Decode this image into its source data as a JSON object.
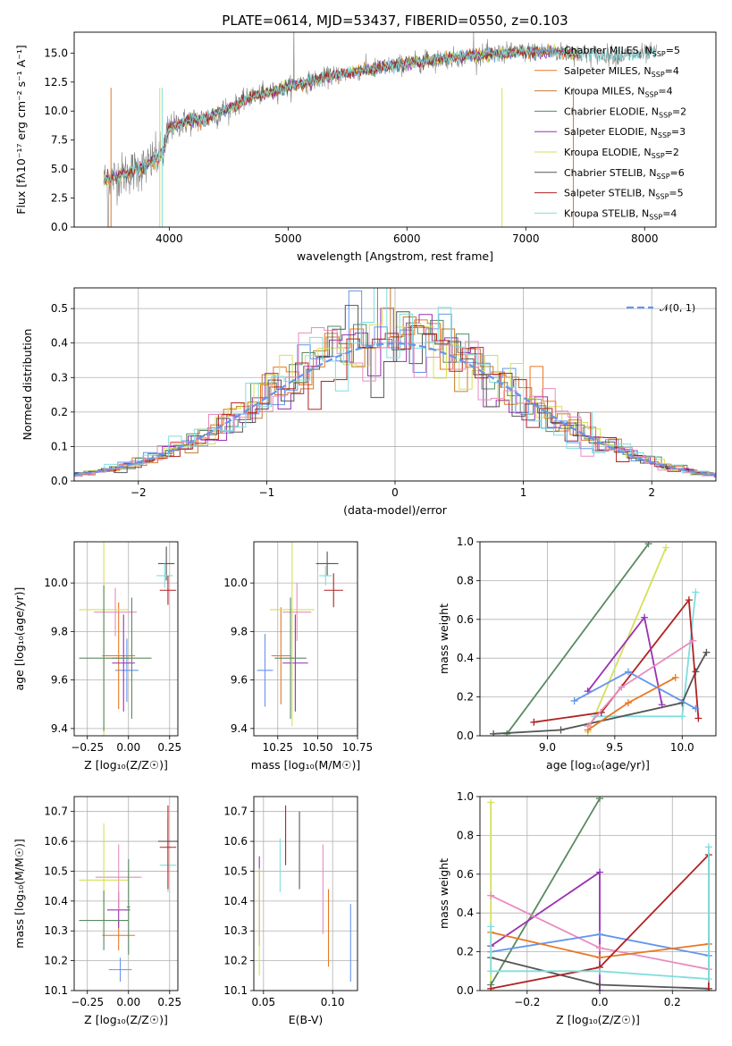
{
  "chart_data": [
    {
      "id": "spectrum",
      "type": "line",
      "title": "PLATE=0614, MJD=53437, FIBERID=0550, z=0.103",
      "xlabel": "wavelength [Angstrom, rest frame]",
      "ylabel": "Flux [fλ10⁻¹⁷ erg cm⁻² s⁻¹ A⁻¹]",
      "xlim": [
        3200,
        8600
      ],
      "ylim": [
        0,
        16.8
      ],
      "xticks": [
        4000,
        5000,
        6000,
        7000,
        8000
      ],
      "yticks": [
        0.0,
        2.5,
        5.0,
        7.5,
        10.0,
        12.5,
        15.0
      ],
      "grid": false,
      "legend_position": "right",
      "continuum": [
        [
          3450,
          4.0
        ],
        [
          3600,
          4.5
        ],
        [
          3800,
          5.2
        ],
        [
          3950,
          6.4
        ],
        [
          4000,
          8.5
        ],
        [
          4100,
          9.0
        ],
        [
          4200,
          9.2
        ],
        [
          4300,
          9.3
        ],
        [
          4500,
          10.2
        ],
        [
          4700,
          11.3
        ],
        [
          4860,
          11.6
        ],
        [
          5000,
          12.1
        ],
        [
          5200,
          12.6
        ],
        [
          5400,
          13.1
        ],
        [
          5600,
          13.5
        ],
        [
          5800,
          13.8
        ],
        [
          6000,
          14.1
        ],
        [
          6200,
          14.4
        ],
        [
          6400,
          14.6
        ],
        [
          6600,
          14.8
        ],
        [
          6800,
          15.0
        ],
        [
          7000,
          15.1
        ],
        [
          7200,
          15.1
        ],
        [
          7400,
          15.0
        ],
        [
          7600,
          14.9
        ],
        [
          7800,
          14.8
        ],
        [
          8000,
          14.9
        ],
        [
          8100,
          15.0
        ]
      ],
      "series": [
        {
          "name": "Chabrier MILES, N_SSP=5",
          "color": "#6495ed"
        },
        {
          "name": "Salpeter MILES, N_SSP=4",
          "color": "#e87722"
        },
        {
          "name": "Kroupa MILES, N_SSP=4",
          "color": "#c87a2c"
        },
        {
          "name": "Chabrier ELODIE, N_SSP=2",
          "color": "#5a8a62"
        },
        {
          "name": "Salpeter ELODIE, N_SSP=3",
          "color": "#9b30b4"
        },
        {
          "name": "Kroupa ELODIE, N_SSP=2",
          "color": "#d4e157"
        },
        {
          "name": "Chabrier STELIB, N_SSP=6",
          "color": "#555555"
        },
        {
          "name": "Salpeter STELIB, N_SSP=5",
          "color": "#b22222"
        },
        {
          "name": "Kroupa STELIB, N_SSP=4",
          "color": "#7fdede"
        }
      ],
      "legend": [
        {
          "base": "Chabrier MILES, N",
          "sub": "SSP",
          "tail": "=5",
          "color": "#6495ed"
        },
        {
          "base": "Salpeter MILES, N",
          "sub": "SSP",
          "tail": "=4",
          "color": "#e87722"
        },
        {
          "base": "Kroupa MILES, N",
          "sub": "SSP",
          "tail": "=4",
          "color": "#c87a2c"
        },
        {
          "base": "Chabrier ELODIE, N",
          "sub": "SSP",
          "tail": "=2",
          "color": "#5a8a62"
        },
        {
          "base": "Salpeter ELODIE, N",
          "sub": "SSP",
          "tail": "=3",
          "color": "#9b30b4"
        },
        {
          "base": "Kroupa ELODIE, N",
          "sub": "SSP",
          "tail": "=2",
          "color": "#d4e157"
        },
        {
          "base": "Chabrier STELIB, N",
          "sub": "SSP",
          "tail": "=6",
          "color": "#555555"
        },
        {
          "base": "Salpeter STELIB, N",
          "sub": "SSP",
          "tail": "=5",
          "color": "#b22222"
        },
        {
          "base": "Kroupa STELIB, N",
          "sub": "SSP",
          "tail": "=4",
          "color": "#7fdede"
        }
      ]
    },
    {
      "id": "residuals",
      "type": "bar",
      "xlabel": "(data-model)/error",
      "ylabel": "Normed distribution",
      "xlim": [
        -2.5,
        2.5
      ],
      "ylim": [
        0,
        0.56
      ],
      "xticks": [
        -2,
        -1,
        0,
        1,
        2
      ],
      "yticks": [
        0.0,
        0.1,
        0.2,
        0.3,
        0.4,
        0.5
      ],
      "grid": true,
      "legend_position": "top-right",
      "legend": "𝒩(0, 1)",
      "bin_width": 0.1,
      "curve_color": "#6495ed",
      "colors": [
        "#6495ed",
        "#e87722",
        "#c87a2c",
        "#5a8a62",
        "#9b30b4",
        "#d4e157",
        "#555555",
        "#b22222",
        "#7fdede",
        "#e88cbf"
      ]
    },
    {
      "id": "age_vs_Z",
      "type": "scatter",
      "xlabel": "Z [log₁₀(Z/Z☉)]",
      "ylabel": "age  [log₁₀(age/yr)]",
      "xlim": [
        -0.33,
        0.3
      ],
      "ylim": [
        9.37,
        10.17
      ],
      "xticks": [
        -0.25,
        0.0,
        0.25
      ],
      "xticklabels": [
        "−0.25",
        "0.00",
        "0.25"
      ],
      "yticks": [
        9.4,
        9.6,
        9.8,
        10.0
      ],
      "yticklabels": [
        "9.4",
        "9.6",
        "9.8",
        "10.0"
      ],
      "grid": true,
      "points": [
        {
          "x": -0.01,
          "y": 9.64,
          "xerr": 0.07,
          "yerr": 0.13,
          "color": "#6495ed"
        },
        {
          "x": -0.06,
          "y": 9.7,
          "xerr": 0.1,
          "yerr": 0.22,
          "color": "#e87722"
        },
        {
          "x": -0.03,
          "y": 9.67,
          "xerr": 0.07,
          "yerr": 0.2,
          "color": "#9b30b4"
        },
        {
          "x": -0.08,
          "y": 9.88,
          "xerr": 0.13,
          "yerr": 0.1,
          "color": "#e88cbf"
        },
        {
          "x": -0.15,
          "y": 9.89,
          "xerr": 0.15,
          "yerr": 0.55,
          "color": "#d4e157"
        },
        {
          "x": -0.15,
          "y": 9.69,
          "xerr": 0.15,
          "yerr": 0.3,
          "color": "#5a8a62"
        },
        {
          "x": 0.02,
          "y": 9.69,
          "xerr": 0.12,
          "yerr": 0.25,
          "color": "#5a8a62"
        },
        {
          "x": 0.23,
          "y": 10.08,
          "xerr": 0.05,
          "yerr": 0.07,
          "color": "#555555"
        },
        {
          "x": 0.22,
          "y": 10.03,
          "xerr": 0.05,
          "yerr": 0.05,
          "color": "#7fdede"
        },
        {
          "x": 0.24,
          "y": 9.97,
          "xerr": 0.05,
          "yerr": 0.06,
          "color": "#b22222"
        }
      ]
    },
    {
      "id": "age_vs_mass",
      "type": "scatter",
      "xlabel": "mass [log₁₀(M/M☉)]",
      "xlim": [
        10.1,
        10.75
      ],
      "ylim": [
        9.37,
        10.17
      ],
      "xticks": [
        10.25,
        10.5,
        10.75
      ],
      "xticklabels": [
        "10.25",
        "10.50",
        "10.75"
      ],
      "yticks": [
        9.4,
        9.6,
        9.8,
        10.0
      ],
      "yticklabels": [
        "9.4",
        "9.6",
        "9.8",
        "10.0"
      ],
      "grid": true,
      "points": [
        {
          "x": 10.17,
          "y": 9.64,
          "xerr": 0.05,
          "yerr": 0.15,
          "color": "#6495ed"
        },
        {
          "x": 10.27,
          "y": 9.7,
          "xerr": 0.06,
          "yerr": 0.2,
          "color": "#e87722"
        },
        {
          "x": 10.36,
          "y": 9.67,
          "xerr": 0.08,
          "yerr": 0.2,
          "color": "#9b30b4"
        },
        {
          "x": 10.37,
          "y": 9.88,
          "xerr": 0.09,
          "yerr": 0.12,
          "color": "#e88cbf"
        },
        {
          "x": 10.34,
          "y": 9.89,
          "xerr": 0.14,
          "yerr": 0.48,
          "color": "#d4e157"
        },
        {
          "x": 10.33,
          "y": 9.69,
          "xerr": 0.1,
          "yerr": 0.25,
          "color": "#5a8a62"
        },
        {
          "x": 10.56,
          "y": 10.08,
          "xerr": 0.07,
          "yerr": 0.05,
          "color": "#555555"
        },
        {
          "x": 10.55,
          "y": 10.03,
          "xerr": 0.04,
          "yerr": 0.04,
          "color": "#7fdede"
        },
        {
          "x": 10.6,
          "y": 9.97,
          "xerr": 0.06,
          "yerr": 0.07,
          "color": "#b22222"
        }
      ]
    },
    {
      "id": "weight_vs_age",
      "type": "line",
      "xlabel": "age  [log₁₀(age/yr)]",
      "ylabel": "mass weight",
      "xlim": [
        8.5,
        10.25
      ],
      "ylim": [
        0,
        1.0
      ],
      "xticks": [
        9.0,
        9.5,
        10.0
      ],
      "xticklabels": [
        "9.0",
        "9.5",
        "10.0"
      ],
      "yticks": [
        0.0,
        0.2,
        0.4,
        0.6,
        0.8,
        1.0
      ],
      "yticklabels": [
        "0.0",
        "0.2",
        "0.4",
        "0.6",
        "0.8",
        "1.0"
      ],
      "grid": true,
      "series": [
        {
          "color": "#5a8a62",
          "points": [
            [
              8.7,
              0.01
            ],
            [
              9.75,
              0.99
            ]
          ]
        },
        {
          "color": "#d4e157",
          "points": [
            [
              9.3,
              0.02
            ],
            [
              9.88,
              0.97
            ]
          ]
        },
        {
          "color": "#7fdede",
          "points": [
            [
              9.35,
              0.1
            ],
            [
              10.0,
              0.1
            ],
            [
              10.1,
              0.74
            ]
          ]
        },
        {
          "color": "#555555",
          "points": [
            [
              8.6,
              0.01
            ],
            [
              9.1,
              0.03
            ],
            [
              10.0,
              0.17
            ],
            [
              10.1,
              0.33
            ],
            [
              10.18,
              0.43
            ]
          ]
        },
        {
          "color": "#b22222",
          "points": [
            [
              8.9,
              0.07
            ],
            [
              9.4,
              0.12
            ],
            [
              10.05,
              0.7
            ],
            [
              10.12,
              0.09
            ]
          ]
        },
        {
          "color": "#9b30b4",
          "points": [
            [
              9.3,
              0.23
            ],
            [
              9.72,
              0.61
            ],
            [
              9.85,
              0.16
            ]
          ]
        },
        {
          "color": "#6495ed",
          "points": [
            [
              9.2,
              0.18
            ],
            [
              9.6,
              0.33
            ],
            [
              10.1,
              0.14
            ]
          ]
        },
        {
          "color": "#e87722",
          "points": [
            [
              9.3,
              0.03
            ],
            [
              9.6,
              0.17
            ],
            [
              9.95,
              0.3
            ]
          ]
        },
        {
          "color": "#e88cbf",
          "points": [
            [
              9.3,
              0.05
            ],
            [
              9.55,
              0.25
            ],
            [
              10.08,
              0.49
            ]
          ]
        }
      ]
    },
    {
      "id": "mass_vs_Z",
      "type": "scatter",
      "xlabel": "Z [log₁₀(Z/Z☉)]",
      "ylabel": "mass [log₁₀(M/M☉)]",
      "xlim": [
        -0.33,
        0.3
      ],
      "ylim": [
        10.1,
        10.75
      ],
      "xticks": [
        -0.25,
        0.0,
        0.25
      ],
      "xticklabels": [
        "−0.25",
        "0.00",
        "0.25"
      ],
      "yticks": [
        10.1,
        10.2,
        10.3,
        10.4,
        10.5,
        10.6,
        10.7
      ],
      "yticklabels": [
        "10.1",
        "10.2",
        "10.3",
        "10.4",
        "10.5",
        "10.6",
        "10.7"
      ],
      "grid": true,
      "points": [
        {
          "x": -0.05,
          "y": 10.17,
          "xerr": 0.07,
          "yerr": 0.04,
          "color": "#6495ed"
        },
        {
          "x": -0.06,
          "y": 10.285,
          "xerr": 0.1,
          "yerr": 0.05,
          "color": "#e87722"
        },
        {
          "x": -0.06,
          "y": 10.37,
          "xerr": 0.07,
          "yerr": 0.06,
          "color": "#9b30b4"
        },
        {
          "x": -0.06,
          "y": 10.48,
          "xerr": 0.14,
          "yerr": 0.11,
          "color": "#e88cbf"
        },
        {
          "x": -0.15,
          "y": 10.47,
          "xerr": 0.15,
          "yerr": 0.19,
          "color": "#d4e157"
        },
        {
          "x": -0.15,
          "y": 10.335,
          "xerr": 0.15,
          "yerr": 0.1,
          "color": "#5a8a62"
        },
        {
          "x": 0.0,
          "y": 10.38,
          "xerr": 0.01,
          "yerr": 0.16,
          "color": "#5a8a62"
        },
        {
          "x": 0.24,
          "y": 10.6,
          "xerr": 0.06,
          "yerr": 0.08,
          "color": "#555555"
        },
        {
          "x": 0.24,
          "y": 10.52,
          "xerr": 0.05,
          "yerr": 0.09,
          "color": "#7fdede"
        },
        {
          "x": 0.24,
          "y": 10.58,
          "xerr": 0.05,
          "yerr": 0.14,
          "color": "#b22222"
        }
      ]
    },
    {
      "id": "mass_vs_ebv",
      "type": "scatter",
      "xlabel": "E(B-V)",
      "xlim": [
        0.043,
        0.118
      ],
      "ylim": [
        10.1,
        10.75
      ],
      "xticks": [
        0.05,
        0.1
      ],
      "xticklabels": [
        "0.05",
        "0.10"
      ],
      "yticks": [
        10.1,
        10.2,
        10.3,
        10.4,
        10.5,
        10.6,
        10.7
      ],
      "yticklabels": [
        "10.1",
        "10.2",
        "10.3",
        "10.4",
        "10.5",
        "10.6",
        "10.7"
      ],
      "grid": true,
      "points": [
        {
          "x": 0.113,
          "y": 10.26,
          "yerr": 0.13,
          "color": "#6495ed"
        },
        {
          "x": 0.097,
          "y": 10.31,
          "yerr": 0.13,
          "color": "#e87722"
        },
        {
          "x": 0.047,
          "y": 10.4,
          "yerr": 0.15,
          "color": "#9b30b4"
        },
        {
          "x": 0.093,
          "y": 10.44,
          "yerr": 0.15,
          "color": "#e88cbf"
        },
        {
          "x": 0.047,
          "y": 10.33,
          "yerr": 0.18,
          "color": "#d4e157"
        },
        {
          "x": 0.076,
          "y": 10.57,
          "yerr": 0.13,
          "color": "#555555"
        },
        {
          "x": 0.062,
          "y": 10.52,
          "yerr": 0.09,
          "color": "#7fdede"
        },
        {
          "x": 0.066,
          "y": 10.62,
          "yerr": 0.1,
          "color": "#b22222"
        }
      ]
    },
    {
      "id": "weight_vs_Z",
      "type": "line",
      "xlabel": "Z [log₁₀(Z/Z☉)]",
      "ylabel": "mass weight",
      "xlim": [
        -0.33,
        0.32
      ],
      "ylim": [
        0,
        1.0
      ],
      "xticks": [
        -0.2,
        0.0,
        0.2
      ],
      "xticklabels": [
        "−0.2",
        "0.0",
        "0.2"
      ],
      "yticks": [
        0.0,
        0.2,
        0.4,
        0.6,
        0.8,
        1.0
      ],
      "yticklabels": [
        "0.0",
        "0.2",
        "0.4",
        "0.6",
        "0.8",
        "1.0"
      ],
      "grid": true,
      "series": [
        {
          "color": "#d4e157",
          "points": [
            [
              -0.3,
              0.97
            ],
            [
              -0.3,
              0.0
            ]
          ]
        },
        {
          "color": "#5a8a62",
          "points": [
            [
              -0.3,
              0.03
            ],
            [
              0.0,
              0.99
            ]
          ]
        },
        {
          "color": "#9b30b4",
          "points": [
            [
              -0.3,
              0.23
            ],
            [
              0.0,
              0.61
            ],
            [
              0.0,
              0.0
            ]
          ]
        },
        {
          "color": "#e88cbf",
          "points": [
            [
              -0.3,
              0.49
            ],
            [
              0.0,
              0.22
            ],
            [
              0.3,
              0.11
            ]
          ]
        },
        {
          "color": "#6495ed",
          "points": [
            [
              -0.3,
              0.2
            ],
            [
              0.0,
              0.29
            ],
            [
              0.3,
              0.18
            ]
          ]
        },
        {
          "color": "#e87722",
          "points": [
            [
              -0.3,
              0.3
            ],
            [
              0.0,
              0.17
            ],
            [
              0.3,
              0.24
            ]
          ]
        },
        {
          "color": "#555555",
          "points": [
            [
              -0.3,
              0.17
            ],
            [
              0.0,
              0.03
            ],
            [
              0.3,
              0.01
            ]
          ]
        },
        {
          "color": "#b22222",
          "points": [
            [
              -0.3,
              0.01
            ],
            [
              0.0,
              0.12
            ],
            [
              0.3,
              0.7
            ],
            [
              0.3,
              0.0
            ]
          ]
        },
        {
          "color": "#7fdede",
          "points": [
            [
              -0.3,
              0.33
            ],
            [
              -0.3,
              0.1
            ],
            [
              0.0,
              0.1
            ],
            [
              0.3,
              0.06
            ],
            [
              0.3,
              0.74
            ]
          ]
        }
      ]
    }
  ]
}
